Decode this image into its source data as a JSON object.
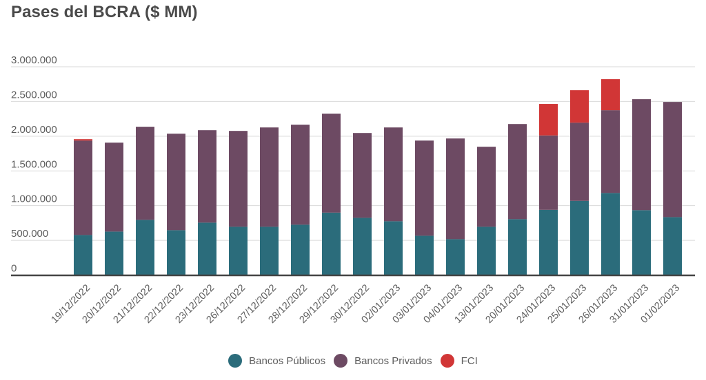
{
  "chart_data": {
    "type": "bar",
    "stacked": true,
    "title": "Pases del BCRA ($ MM)",
    "xlabel": "",
    "ylabel": "",
    "ylim": [
      0,
      3000000
    ],
    "yticks": [
      0,
      500000,
      1000000,
      1500000,
      2000000,
      2500000,
      3000000
    ],
    "ytick_labels": [
      "0",
      "500.000",
      "1.000.000",
      "1.500.000",
      "2.000.000",
      "2.500.000",
      "3.000.000"
    ],
    "grid": true,
    "legend_position": "bottom-center",
    "categories": [
      "19/12/2022",
      "20/12/2022",
      "21/12/2022",
      "22/12/2022",
      "23/12/2022",
      "26/12/2022",
      "27/12/2022",
      "28/12/2022",
      "29/12/2022",
      "30/12/2022",
      "02/01/2023",
      "03/01/2023",
      "04/01/2023",
      "13/01/2023",
      "20/01/2023",
      "24/01/2023",
      "25/01/2023",
      "26/01/2023",
      "31/01/2023",
      "01/02/2023"
    ],
    "series": [
      {
        "name": "Bancos Públicos",
        "color": "#2b6c7b",
        "values": [
          576000,
          626000,
          795000,
          646000,
          755000,
          695000,
          695000,
          725000,
          899000,
          824000,
          775000,
          566000,
          517000,
          695000,
          805000,
          939000,
          1068000,
          1182000,
          934000,
          834000
        ]
      },
      {
        "name": "Bancos Privados",
        "color": "#6d4a63",
        "values": [
          1361000,
          1281000,
          1341000,
          1390000,
          1331000,
          1381000,
          1431000,
          1441000,
          1426000,
          1222000,
          1351000,
          1371000,
          1450000,
          1153000,
          1370000,
          1072000,
          1127000,
          1192000,
          1599000,
          1659000
        ]
      },
      {
        "name": "FCI",
        "color": "#d13636",
        "values": [
          20000,
          0,
          0,
          0,
          0,
          0,
          0,
          0,
          0,
          0,
          0,
          0,
          0,
          0,
          0,
          453000,
          467000,
          447000,
          0,
          0
        ]
      }
    ]
  }
}
